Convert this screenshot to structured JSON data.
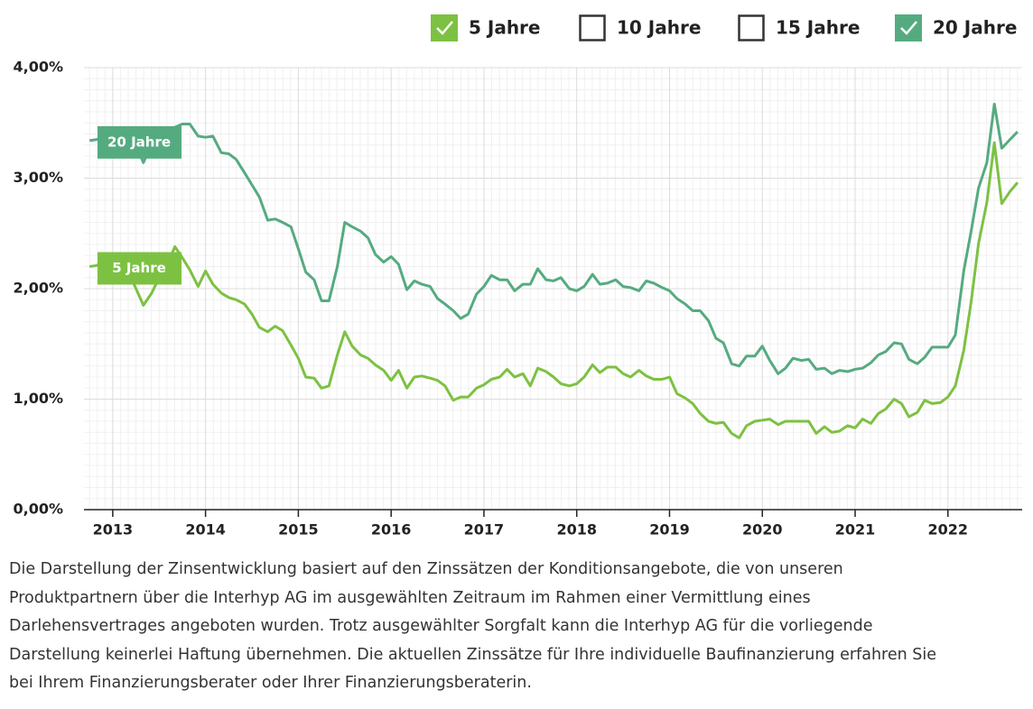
{
  "chart_data": {
    "type": "line",
    "legend_items": [
      {
        "label": "5 Jahre",
        "checked": true,
        "color": "#7dc142"
      },
      {
        "label": "10 Jahre",
        "checked": false,
        "color": "#333333"
      },
      {
        "label": "15 Jahre",
        "checked": false,
        "color": "#333333"
      },
      {
        "label": "20 Jahre",
        "checked": true,
        "color": "#55ab80"
      }
    ],
    "xlim": [
      2012.69,
      2022.8
    ],
    "xticks": [
      2013,
      2014,
      2015,
      2016,
      2017,
      2018,
      2019,
      2020,
      2021,
      2022
    ],
    "ylim": [
      0,
      4
    ],
    "yticks": [
      {
        "value": 0,
        "label": "0,00%"
      },
      {
        "value": 1,
        "label": "1,00%"
      },
      {
        "value": 2,
        "label": "2,00%"
      },
      {
        "value": 3,
        "label": "3,00%"
      },
      {
        "value": 4,
        "label": "4,00%"
      }
    ],
    "grid": true,
    "x": [
      2012.75,
      2012.83,
      2012.92,
      2013,
      2013.08,
      2013.17,
      2013.25,
      2013.33,
      2013.42,
      2013.5,
      2013.58,
      2013.67,
      2013.75,
      2013.83,
      2013.92,
      2014,
      2014.08,
      2014.17,
      2014.25,
      2014.33,
      2014.42,
      2014.5,
      2014.58,
      2014.67,
      2014.75,
      2014.83,
      2014.92,
      2015,
      2015.08,
      2015.17,
      2015.25,
      2015.33,
      2015.42,
      2015.5,
      2015.58,
      2015.67,
      2015.75,
      2015.83,
      2015.92,
      2016,
      2016.08,
      2016.17,
      2016.25,
      2016.33,
      2016.42,
      2016.5,
      2016.58,
      2016.67,
      2016.75,
      2016.83,
      2016.92,
      2017,
      2017.08,
      2017.17,
      2017.25,
      2017.33,
      2017.42,
      2017.5,
      2017.58,
      2017.67,
      2017.75,
      2017.83,
      2017.92,
      2018,
      2018.08,
      2018.17,
      2018.25,
      2018.33,
      2018.42,
      2018.5,
      2018.58,
      2018.67,
      2018.75,
      2018.83,
      2018.92,
      2019,
      2019.08,
      2019.17,
      2019.25,
      2019.33,
      2019.42,
      2019.5,
      2019.58,
      2019.67,
      2019.75,
      2019.83,
      2019.92,
      2020,
      2020.08,
      2020.17,
      2020.25,
      2020.33,
      2020.42,
      2020.5,
      2020.58,
      2020.67,
      2020.75,
      2020.83,
      2020.92,
      2021,
      2021.08,
      2021.17,
      2021.25,
      2021.33,
      2021.42,
      2021.5,
      2021.58,
      2021.67,
      2021.75,
      2021.83,
      2021.92,
      2022,
      2022.08,
      2022.17,
      2022.25,
      2022.33,
      2022.42,
      2022.5,
      2022.58,
      2022.67,
      2022.75
    ],
    "series": [
      {
        "name": "5 Jahre",
        "color": "#7dc142",
        "values": [
          2.2,
          2.21,
          2.27,
          2.3,
          2.25,
          2.15,
          2.0,
          1.85,
          1.96,
          2.1,
          2.2,
          2.38,
          2.28,
          2.17,
          2.02,
          2.16,
          2.04,
          1.96,
          1.92,
          1.9,
          1.86,
          1.77,
          1.65,
          1.61,
          1.66,
          1.62,
          1.49,
          1.37,
          1.2,
          1.19,
          1.1,
          1.12,
          1.4,
          1.61,
          1.48,
          1.4,
          1.37,
          1.31,
          1.26,
          1.17,
          1.26,
          1.1,
          1.2,
          1.21,
          1.19,
          1.17,
          1.12,
          0.99,
          1.02,
          1.02,
          1.1,
          1.13,
          1.18,
          1.2,
          1.27,
          1.2,
          1.23,
          1.12,
          1.28,
          1.25,
          1.2,
          1.14,
          1.12,
          1.14,
          1.2,
          1.31,
          1.24,
          1.29,
          1.29,
          1.23,
          1.2,
          1.26,
          1.21,
          1.18,
          1.18,
          1.2,
          1.05,
          1.01,
          0.96,
          0.87,
          0.8,
          0.78,
          0.79,
          0.69,
          0.65,
          0.76,
          0.8,
          0.81,
          0.82,
          0.77,
          0.8,
          0.8,
          0.8,
          0.8,
          0.69,
          0.75,
          0.7,
          0.71,
          0.76,
          0.74,
          0.82,
          0.78,
          0.87,
          0.91,
          1.0,
          0.96,
          0.84,
          0.88,
          0.99,
          0.96,
          0.97,
          1.02,
          1.12,
          1.44,
          1.88,
          2.41,
          2.78,
          3.32,
          2.77,
          2.88,
          2.96
        ]
      },
      {
        "name": "20 Jahre",
        "color": "#55ab80",
        "values": [
          3.34,
          3.35,
          3.37,
          3.4,
          3.42,
          3.35,
          3.3,
          3.14,
          3.31,
          3.4,
          3.43,
          3.46,
          3.49,
          3.49,
          3.38,
          3.37,
          3.38,
          3.23,
          3.22,
          3.17,
          3.05,
          2.94,
          2.83,
          2.62,
          2.63,
          2.6,
          2.56,
          2.36,
          2.15,
          2.08,
          1.89,
          1.89,
          2.2,
          2.6,
          2.56,
          2.52,
          2.46,
          2.31,
          2.24,
          2.29,
          2.22,
          1.99,
          2.07,
          2.04,
          2.02,
          1.91,
          1.86,
          1.8,
          1.73,
          1.77,
          1.95,
          2.02,
          2.12,
          2.08,
          2.08,
          1.98,
          2.04,
          2.04,
          2.18,
          2.08,
          2.07,
          2.1,
          2.0,
          1.98,
          2.02,
          2.13,
          2.04,
          2.05,
          2.08,
          2.02,
          2.01,
          1.98,
          2.07,
          2.05,
          2.01,
          1.98,
          1.91,
          1.86,
          1.8,
          1.8,
          1.71,
          1.55,
          1.51,
          1.32,
          1.3,
          1.39,
          1.39,
          1.48,
          1.35,
          1.23,
          1.28,
          1.37,
          1.35,
          1.36,
          1.27,
          1.28,
          1.23,
          1.26,
          1.25,
          1.27,
          1.28,
          1.33,
          1.4,
          1.43,
          1.51,
          1.5,
          1.36,
          1.32,
          1.38,
          1.47,
          1.47,
          1.47,
          1.58,
          2.16,
          2.52,
          2.91,
          3.14,
          3.67,
          3.27,
          3.35,
          3.42
        ]
      }
    ],
    "footnote": [
      "Die Darstellung der Zinsentwicklung basiert auf den Zinssätzen der Konditionsangebote, die von unseren",
      "Produktpartnern über die Interhyp AG im ausgewählten Zeitraum im Rahmen einer Vermittlung eines",
      "Darlehensvertrages angeboten wurden. Trotz ausgewählter Sorgfalt kann die Interhyp AG für die vorliegende",
      "Darstellung keinerlei Haftung übernehmen. Die aktuellen Zinssätze für Ihre individuelle Baufinanzierung erfahren Sie",
      "bei Ihrem Finanzierungsberater oder Ihrer Finanzierungsberaterin."
    ]
  }
}
